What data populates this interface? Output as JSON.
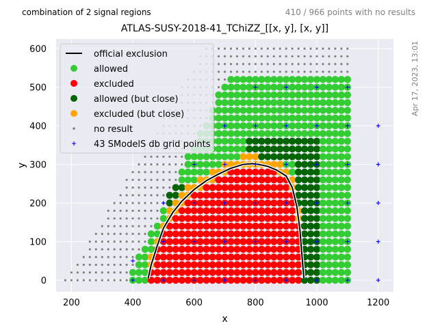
{
  "header": {
    "left_text": "combination of 2 signal regions",
    "right_text": "410 / 966 points with no results",
    "side_text": "Apr 17, 2023, 13:01"
  },
  "chart_data": {
    "type": "scatter",
    "title": "ATLAS-SUSY-2018-41_TChiZZ_[[x, y], [x, y]]",
    "xlabel": "x",
    "ylabel": "y",
    "xlim": [
      150,
      1250
    ],
    "ylim": [
      -30,
      625
    ],
    "xticks": [
      200,
      400,
      600,
      800,
      1000,
      1200
    ],
    "yticks": [
      0,
      100,
      200,
      300,
      400,
      500,
      600
    ],
    "grid": true,
    "legend_position": "top-left",
    "colors": {
      "background": "#eaeaf2",
      "allowed": "#33cc33",
      "excluded": "#ff0000",
      "allowed_close": "#006400",
      "excluded_close": "#ffa500",
      "no_result": "#808080",
      "grid_points": "#0000ff",
      "exclusion_line": "#000000"
    },
    "legend": [
      {
        "label": "official exclusion",
        "marker": "line"
      },
      {
        "label": "allowed",
        "marker": "allowed"
      },
      {
        "label": "excluded",
        "marker": "excluded"
      },
      {
        "label": "allowed (but close)",
        "marker": "allowed_close"
      },
      {
        "label": "excluded (but close)",
        "marker": "excluded_close"
      },
      {
        "label": "no result",
        "marker": "no_result"
      },
      {
        "label": "43 SModelS db grid points",
        "marker": "grid_points"
      }
    ],
    "grid_step": {
      "x": 20,
      "y": 20
    },
    "status_regions": {
      "no_result_region": "y <= 1.33*(x - 180) and y <= 600, outside colored region",
      "colored_region": "y <= 1.62*(x - 400) + 30 and y <= 520, 400 <= x <= 1100"
    },
    "official_exclusion": {
      "x": [
        450,
        460,
        480,
        500,
        530,
        560,
        600,
        640,
        680,
        720,
        760,
        790,
        810,
        840,
        870,
        900,
        920,
        935,
        945,
        950,
        955,
        958
      ],
      "y": [
        5,
        40,
        90,
        135,
        175,
        205,
        235,
        258,
        275,
        290,
        300,
        302,
        300,
        295,
        285,
        270,
        240,
        190,
        130,
        80,
        30,
        5
      ]
    },
    "smodels_grid_points": [
      [
        400,
        0
      ],
      [
        400,
        50
      ],
      [
        500,
        0
      ],
      [
        500,
        100
      ],
      [
        500,
        200
      ],
      [
        600,
        0
      ],
      [
        600,
        100
      ],
      [
        600,
        200
      ],
      [
        600,
        300
      ],
      [
        700,
        0
      ],
      [
        700,
        100
      ],
      [
        700,
        200
      ],
      [
        700,
        300
      ],
      [
        700,
        400
      ],
      [
        800,
        0
      ],
      [
        800,
        100
      ],
      [
        800,
        200
      ],
      [
        800,
        300
      ],
      [
        800,
        400
      ],
      [
        800,
        500
      ],
      [
        900,
        0
      ],
      [
        900,
        100
      ],
      [
        900,
        200
      ],
      [
        900,
        300
      ],
      [
        900,
        400
      ],
      [
        900,
        500
      ],
      [
        1000,
        0
      ],
      [
        1000,
        100
      ],
      [
        1000,
        200
      ],
      [
        1000,
        300
      ],
      [
        1000,
        400
      ],
      [
        1000,
        500
      ],
      [
        1100,
        0
      ],
      [
        1100,
        100
      ],
      [
        1100,
        200
      ],
      [
        1100,
        300
      ],
      [
        1100,
        400
      ],
      [
        1100,
        500
      ],
      [
        1200,
        0
      ],
      [
        1200,
        100
      ],
      [
        1200,
        200
      ],
      [
        1200,
        300
      ],
      [
        1200,
        400
      ]
    ]
  }
}
